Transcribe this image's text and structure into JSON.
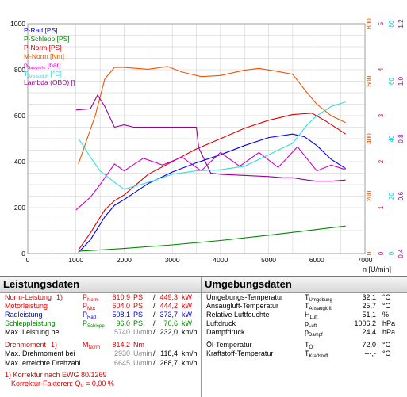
{
  "chart_data": {
    "type": "line",
    "xlabel": "n [U/min]",
    "xlim": [
      0,
      7000
    ],
    "x_ticks": [
      "0",
      "1000",
      "2000",
      "3000",
      "4000",
      "5000",
      "6000",
      "7000"
    ],
    "y_left_ticks": [
      "0",
      "200",
      "400",
      "600",
      "800",
      "1000"
    ],
    "y_left_lim": [
      0,
      1000
    ],
    "right_axes": [
      {
        "ticks": [
          "0",
          "200",
          "400",
          "600",
          "800"
        ],
        "color": "#dd4400"
      },
      {
        "ticks": [
          "0",
          "1",
          "2",
          "3",
          "4",
          "5"
        ],
        "color": "#dd0077"
      },
      {
        "ticks": [
          "0",
          "20",
          "40",
          "60",
          "80"
        ],
        "color": "#00cccc"
      },
      {
        "ticks": [
          "0.4",
          "0.6",
          "0.8",
          "1.0",
          "1.2"
        ],
        "color": "#990099"
      }
    ],
    "grid": true,
    "legend_position": "top-left",
    "series": [
      {
        "name": "P-Rad [PS]",
        "color": "#0000ee",
        "x": [
          1050,
          1300,
          1600,
          1800,
          2000,
          2500,
          3000,
          3500,
          4000,
          4500,
          5000,
          5500,
          5750,
          6000,
          6300,
          6600
        ],
        "y": [
          5,
          60,
          160,
          210,
          235,
          305,
          355,
          395,
          430,
          470,
          505,
          520,
          508,
          470,
          410,
          370
        ]
      },
      {
        "name": "P-Schlepp [PS]",
        "color": "#008800",
        "x": [
          1050,
          2000,
          3000,
          4000,
          5000,
          6000,
          6600
        ],
        "y": [
          10,
          22,
          38,
          57,
          80,
          105,
          120
        ]
      },
      {
        "name": "P-Norm [PS]",
        "color": "#dd0000",
        "x": [
          1050,
          1300,
          1600,
          1800,
          2000,
          2500,
          3000,
          3500,
          4000,
          4500,
          5000,
          5500,
          5900,
          6200,
          6600
        ],
        "y": [
          15,
          90,
          190,
          230,
          255,
          345,
          400,
          455,
          500,
          545,
          580,
          605,
          611,
          575,
          520
        ]
      },
      {
        "name": "M-Norm [Nm]",
        "color": "#ee5500",
        "x": [
          1050,
          1400,
          1600,
          1800,
          2000,
          2500,
          2900,
          3200,
          3600,
          4000,
          4500,
          4800,
          5200,
          5500,
          5800,
          6000,
          6300,
          6600
        ],
        "y": [
          390,
          600,
          760,
          810,
          810,
          802,
          814,
          790,
          770,
          775,
          798,
          806,
          792,
          780,
          700,
          650,
          600,
          570
        ]
      },
      {
        "name": "Saugrohr [bar]",
        "color": "#cc00cc",
        "x": [
          1000,
          1300,
          1500,
          1800,
          2000,
          2400,
          2800,
          3200,
          3600,
          4000,
          4400,
          4800,
          5200,
          5600,
          6000,
          6300,
          6600
        ],
        "y": [
          190,
          245,
          300,
          390,
          360,
          415,
          385,
          420,
          360,
          440,
          380,
          440,
          375,
          465,
          360,
          385,
          365
        ]
      },
      {
        "name": "Ansaugluft [°C]",
        "color": "#33dddd",
        "x": [
          1050,
          1150,
          1300,
          1500,
          1800,
          2000,
          2500,
          3000,
          3500,
          4000,
          4500,
          5000,
          5500,
          5800,
          6000,
          6300,
          6600
        ],
        "y": [
          500,
          470,
          420,
          360,
          310,
          280,
          310,
          345,
          360,
          365,
          380,
          430,
          480,
          560,
          600,
          640,
          660
        ]
      },
      {
        "name": "Lambda (OBD) []",
        "color": "#990099",
        "x": [
          1000,
          1300,
          1450,
          1600,
          1800,
          2000,
          2200,
          2500,
          3000,
          3500,
          3550,
          3800,
          4000,
          5000,
          5300,
          5500,
          5800,
          6000,
          6300,
          6600
        ],
        "y": [
          625,
          630,
          690,
          640,
          550,
          560,
          550,
          550,
          550,
          550,
          460,
          350,
          345,
          335,
          330,
          330,
          320,
          315,
          315,
          320
        ]
      }
    ]
  },
  "chart_legend": {
    "p_rad": "P-Rad [PS]",
    "p_schlepp": "P-Schlepp [PS]",
    "p_norm": "P-Norm [PS]",
    "m_norm": "M-Norm [Nm]",
    "p_saug_main": "p",
    "p_saug_sub": "Saugrohr",
    "p_saug_unit": " [bar]",
    "t_ans_main": "T",
    "t_ans_sub": "Ansaugluft",
    "t_ans_unit": " [°C]",
    "lambda": "Lambda (OBD) []"
  },
  "leistung": {
    "title": "Leistungsdaten",
    "rows": [
      {
        "label": "Norm-Leistung",
        "ref": "1)",
        "sym": "P",
        "sym_sub": "Norm",
        "v1": "610,9",
        "u1": "PS",
        "sep": "/",
        "v2": "449,3",
        "u2": "kW"
      },
      {
        "label": "Motorleistung",
        "ref": "",
        "sym": "P",
        "sym_sub": "Mot",
        "v1": "604,0",
        "u1": "PS",
        "sep": "/",
        "v2": "444,2",
        "u2": "kW"
      },
      {
        "label": "Radleistung",
        "ref": "",
        "sym": "P",
        "sym_sub": "Rad",
        "v1": "508,1",
        "u1": "PS",
        "sep": "/",
        "v2": "373,7",
        "u2": "kW"
      },
      {
        "label": "Schleppleistung",
        "ref": "",
        "sym": "P",
        "sym_sub": "Schlepp",
        "v1": "96,0",
        "u1": "PS",
        "sep": "/",
        "v2": "70,6",
        "u2": "kW"
      },
      {
        "label": "Max. Leistung bei",
        "ref": "",
        "sym": "",
        "sym_sub": "",
        "v1": "5740",
        "u1": "U/min",
        "sep": "/",
        "v2": "232,0",
        "u2": "km/h"
      },
      {
        "label": "Drehmoment",
        "ref": "1)",
        "sym": "M",
        "sym_sub": "Norm",
        "v1": "814,2",
        "u1": "Nm",
        "sep": "",
        "v2": "",
        "u2": ""
      },
      {
        "label": "Max. Drehmoment bei",
        "ref": "",
        "sym": "",
        "sym_sub": "",
        "v1": "2930",
        "u1": "U/min",
        "sep": "/",
        "v2": "118,4",
        "u2": "km/h"
      },
      {
        "label": "Max. erreichte Drehzahl",
        "ref": "",
        "sym": "",
        "sym_sub": "",
        "v1": "6645",
        "u1": "U/min",
        "sep": "/",
        "v2": "268,7",
        "u2": "km/h"
      }
    ],
    "footnote1": "1) Korrektur nach EWG 80/1269",
    "footnote2_label": "Korrektur-Faktoren: Q",
    "footnote2_sub": "V",
    "footnote2_value": "=   0,00 %"
  },
  "umgebung": {
    "title": "Umgebungsdaten",
    "rows": [
      {
        "label": "Umgebungs-Temperatur",
        "sym": "T",
        "sym_sub": "Umgebung",
        "value": "32,1",
        "unit": "°C"
      },
      {
        "label": "Ansaugluft-Temperatur",
        "sym": "T",
        "sym_sub": "Ansaugluft",
        "value": "25,7",
        "unit": "°C"
      },
      {
        "label": "Relative Luftfeuchte",
        "sym": "H",
        "sym_sub": "Luft",
        "value": "51,1",
        "unit": "%"
      },
      {
        "label": "Luftdruck",
        "sym": "p",
        "sym_sub": "Luft",
        "value": "1006,2",
        "unit": "hPa"
      },
      {
        "label": "Dampfdruck",
        "sym": "p",
        "sym_sub": "Dampf",
        "value": "24,4",
        "unit": "hPa"
      },
      {
        "label": "Öl-Temperatur",
        "sym": "T",
        "sym_sub": "Öl",
        "value": "72,0",
        "unit": "°C"
      },
      {
        "label": "Kraftstoff-Temperatur",
        "sym": "T",
        "sym_sub": "Kraftstoff",
        "value": "---,-",
        "unit": "°C"
      }
    ]
  }
}
